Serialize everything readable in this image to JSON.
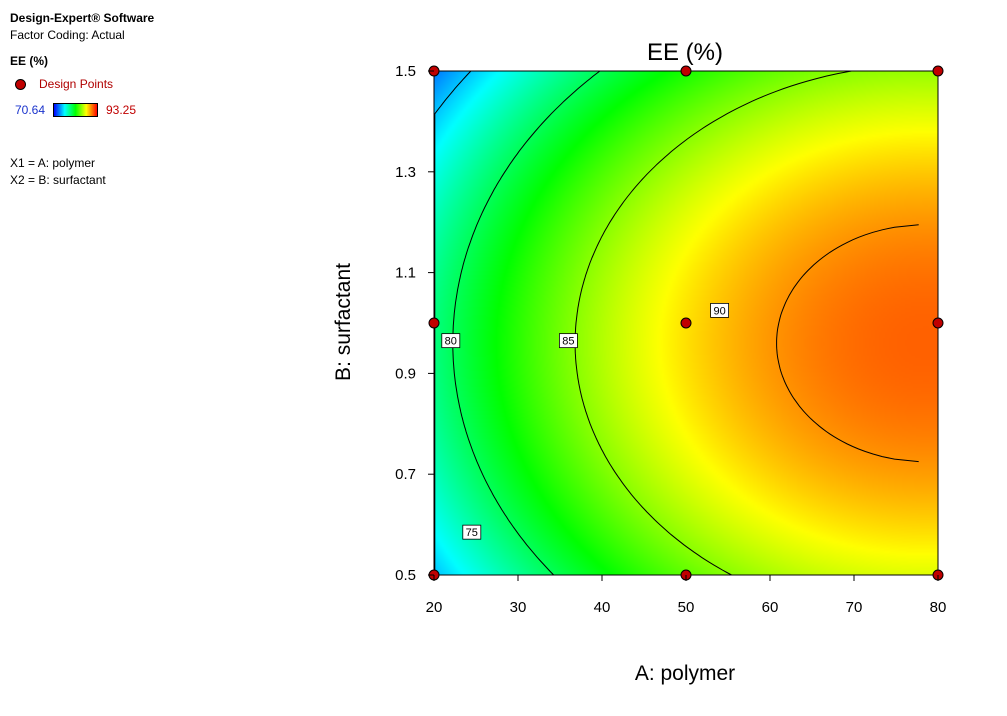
{
  "header": {
    "app_title": "Design-Expert® Software",
    "factor_coding": "Factor Coding: Actual"
  },
  "legend": {
    "response": "EE (%)",
    "design_points_label": "Design Points",
    "color_min": "70.64",
    "color_max": "93.25",
    "factor_x1": "X1 = A: polymer",
    "factor_x2": "X2 = B: surfactant",
    "colors": {
      "low": "#0000ff",
      "mid": "#00ff00",
      "high": "#ff0000",
      "point": "#c00000"
    }
  },
  "chart_data": {
    "type": "contour",
    "title": "EE (%)",
    "xlabel": "A: polymer",
    "ylabel": "B: surfactant",
    "xlim": [
      20,
      80
    ],
    "ylim": [
      0.5,
      1.5
    ],
    "x_ticks": [
      "20",
      "30",
      "40",
      "50",
      "60",
      "70",
      "80"
    ],
    "y_ticks": [
      "0.5",
      "0.7",
      "0.9",
      "1.1",
      "1.3",
      "1.5"
    ],
    "color_range": [
      70.64,
      93.25
    ],
    "contours": [
      {
        "level": 75,
        "label": "75",
        "label_at": [
          24.5,
          0.585
        ]
      },
      {
        "level": 80,
        "label": "80",
        "label_at": [
          22,
          0.965
        ]
      },
      {
        "level": 85,
        "label": "85",
        "label_at": [
          36,
          0.965
        ]
      },
      {
        "level": 90,
        "label": "90",
        "label_at": [
          54,
          1.025
        ]
      }
    ],
    "design_points": [
      {
        "x": 20,
        "y": 0.5
      },
      {
        "x": 20,
        "y": 1.0
      },
      {
        "x": 20,
        "y": 1.5
      },
      {
        "x": 50,
        "y": 0.5
      },
      {
        "x": 50,
        "y": 1.0
      },
      {
        "x": 50,
        "y": 1.5
      },
      {
        "x": 80,
        "y": 0.5
      },
      {
        "x": 80,
        "y": 1.0
      },
      {
        "x": 80,
        "y": 1.5
      }
    ]
  }
}
